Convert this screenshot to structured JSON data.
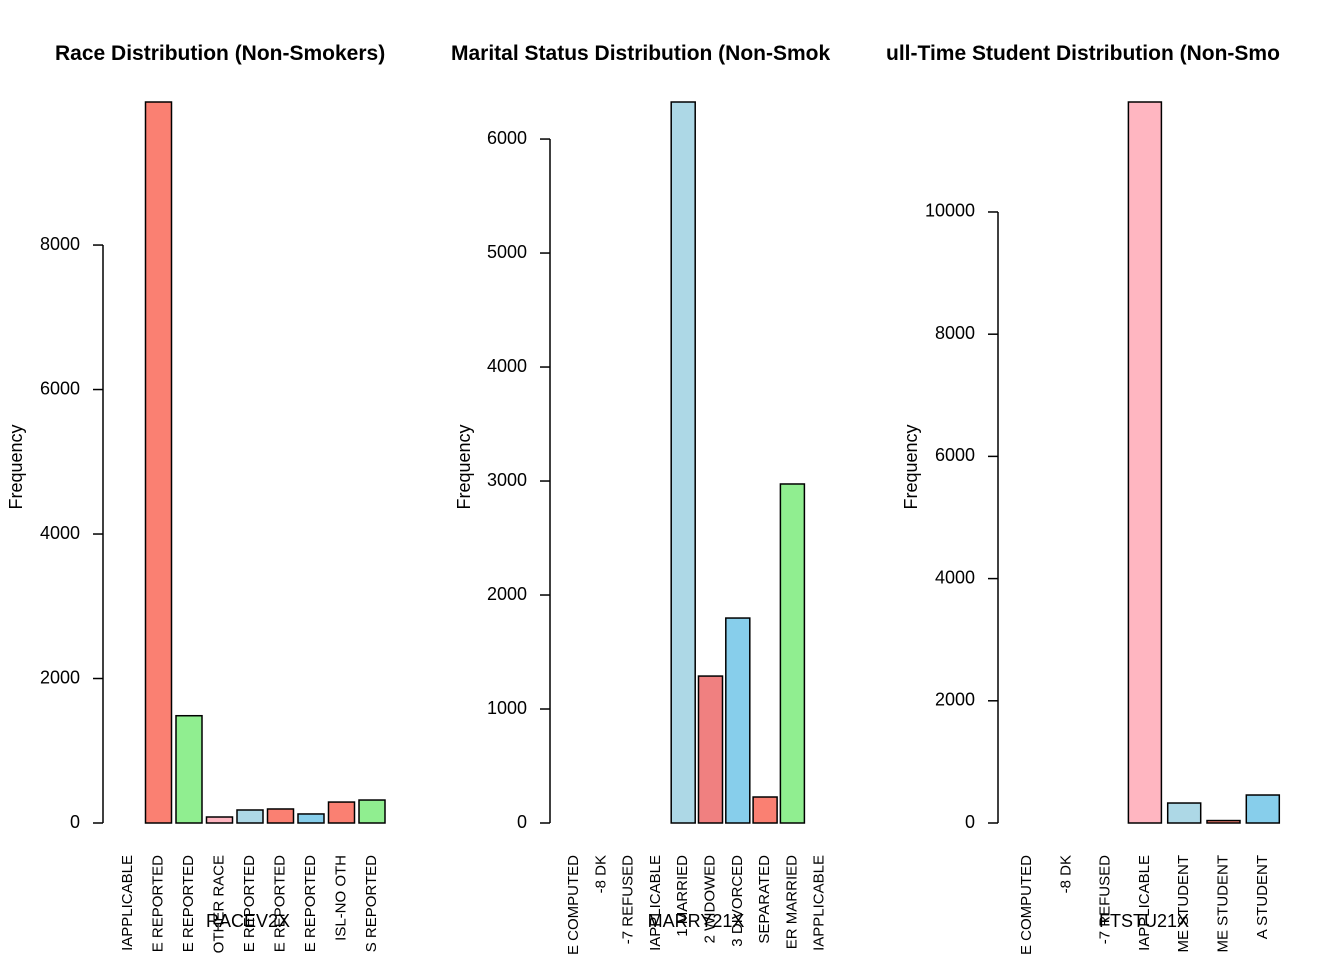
{
  "chart_data": [
    {
      "type": "bar",
      "title": "Race Distribution (Non-Smokers)",
      "xlabel": "RACEV2X",
      "ylabel": "Frequency",
      "categories": [
        "IAPPLICABLE",
        "E REPORTED",
        "E REPORTED",
        "OTHER RACE",
        "E REPORTED",
        "E REPORTED",
        "E REPORTED",
        "ISL-NO OTH",
        "S REPORTED"
      ],
      "values": [
        0,
        9980,
        1485,
        83,
        180,
        194,
        125,
        290,
        318
      ],
      "colors": [
        "#87ceeb",
        "#fa8072",
        "#90ee90",
        "#ffb6c1",
        "#add8e6",
        "#fa8072",
        "#87ceeb",
        "#fa8072",
        "#90ee90"
      ],
      "ylim": [
        0,
        9980
      ],
      "yticks": [
        0,
        2000,
        4000,
        6000,
        8000
      ]
    },
    {
      "type": "bar",
      "title": "Marital Status Distribution (Non-Smok",
      "xlabel": "MARRY21X",
      "ylabel": "Frequency",
      "categories": [
        "E COMPUTED",
        "-8 DK",
        "-7 REFUSED",
        "IAPPLICABLE",
        "1 MARRIED",
        "2 WIDOWED",
        "3 DIVORCED",
        "SEPARATED",
        "ER MARRIED",
        "IAPPLICABLE"
      ],
      "values": [
        0,
        0,
        0,
        0,
        6325,
        1289,
        1798,
        228,
        2974,
        0
      ],
      "colors": [
        "#90ee90",
        "#ffb6c1",
        "#add8e6",
        "#f08080",
        "#add8e6",
        "#f08080",
        "#87ceeb",
        "#fa8072",
        "#90ee90",
        "#ffb6c1"
      ],
      "ylim": [
        0,
        6325
      ],
      "yticks": [
        0,
        1000,
        2000,
        3000,
        4000,
        5000,
        6000
      ]
    },
    {
      "type": "bar",
      "title": "ull-Time Student Distribution (Non-Smo",
      "xlabel": "FTSTU21X",
      "ylabel": "Frequency",
      "categories": [
        "E COMPUTED",
        "-8 DK",
        "-7 REFUSED",
        "IAPPLICABLE",
        "ME STUDENT",
        "ME STUDENT",
        "A STUDENT"
      ],
      "values": [
        0,
        0,
        0,
        11800,
        327,
        40,
        458
      ],
      "colors": [
        "#90ee90",
        "#90ee90",
        "#ffb6c1",
        "#ffb6c1",
        "#add8e6",
        "#fa8072",
        "#87ceeb"
      ],
      "ylim": [
        0,
        11800
      ],
      "yticks": [
        0,
        2000,
        4000,
        6000,
        8000,
        10000
      ]
    }
  ]
}
